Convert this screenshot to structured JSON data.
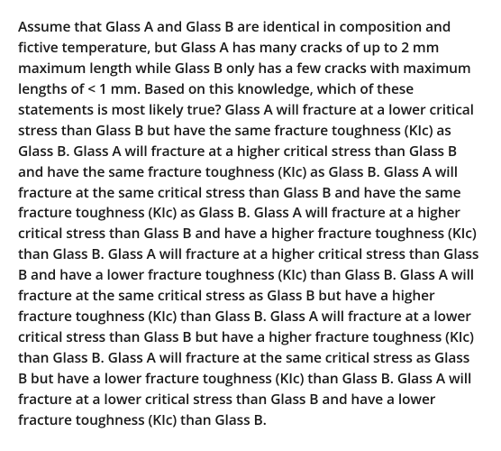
{
  "question": {
    "text": "Assume that Glass A and Glass B are identical in composition and fictive temperature, but Glass A has many cracks of up to 2 mm maximum length while Glass B only has a few cracks with maximum lengths of < 1 mm. Based on this knowledge, which of these statements is most likely true? Glass A will fracture at a lower critical stress than Glass B but have the same fracture toughness (KIc) as Glass B. Glass A will fracture at a higher critical stress than Glass B and have the same fracture toughness (KIc) as Glass B. Glass A will fracture at the same critical stress than Glass B and have the same fracture toughness (KIc) as Glass B. Glass A will fracture at a higher critical stress than Glass B and have a higher fracture toughness (KIc) than Glass B. Glass A will fracture at a higher critical stress than Glass B and have a lower fracture toughness (KIc) than Glass B. Glass A will fracture at the same critical stress as Glass B but have a higher fracture toughness (KIc) than Glass B. Glass A will fracture at a lower critical stress than Glass B but have a higher fracture toughness (KIc) than Glass B. Glass A will fracture at the same critical stress as Glass B but have a lower fracture toughness (KIc) than Glass B. Glass A will fracture at a lower critical stress than Glass B and have a lower fracture toughness (KIc) than Glass B.",
    "text_color": "#1a1a1a",
    "background_color": "#ffffff",
    "font_size": 15.5,
    "font_weight": 600,
    "line_height": 1.48
  }
}
